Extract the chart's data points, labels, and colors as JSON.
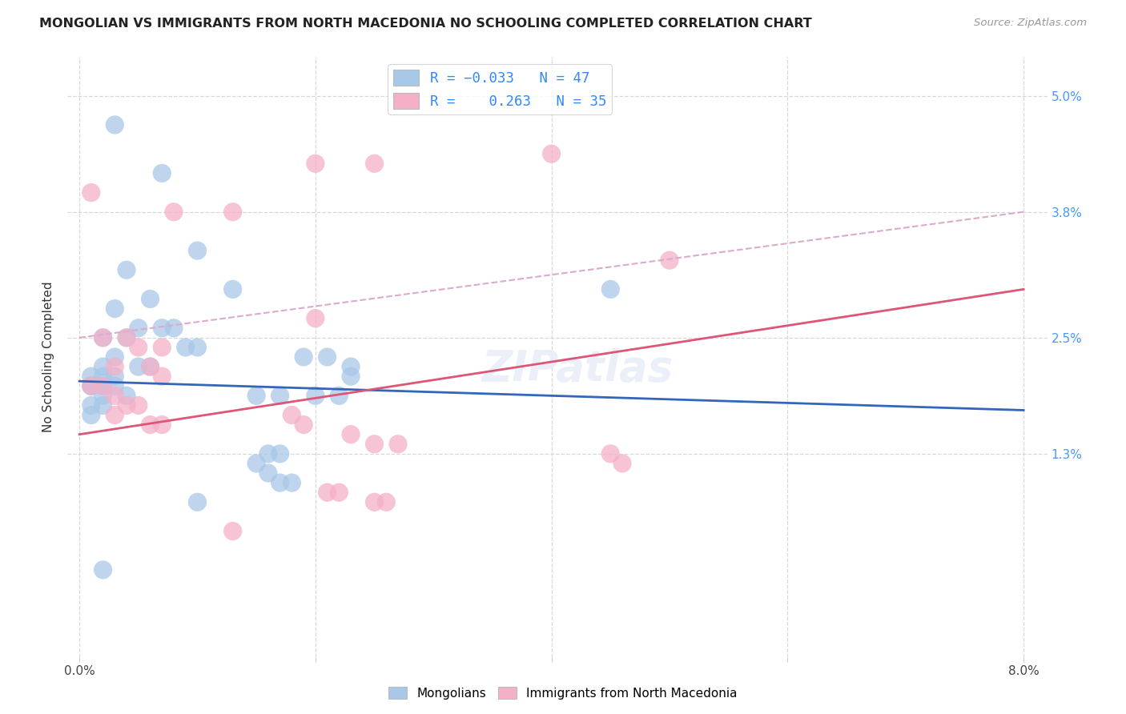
{
  "title": "MONGOLIAN VS IMMIGRANTS FROM NORTH MACEDONIA NO SCHOOLING COMPLETED CORRELATION CHART",
  "source": "Source: ZipAtlas.com",
  "ylabel": "No Schooling Completed",
  "ytick_vals": [
    0.013,
    0.025,
    0.038,
    0.05
  ],
  "ytick_labels": [
    "1.3%",
    "2.5%",
    "3.8%",
    "5.0%"
  ],
  "xtick_vals": [
    0.0,
    0.02,
    0.04,
    0.06,
    0.08
  ],
  "xtick_labels": [
    "0.0%",
    "",
    "",
    "",
    "8.0%"
  ],
  "xlim": [
    -0.001,
    0.082
  ],
  "ylim": [
    -0.008,
    0.054
  ],
  "mongolian_color": "#a8c8e8",
  "macedonia_color": "#f4b0c8",
  "mongolian_line_color": "#3366bb",
  "macedonia_line_color": "#dd5577",
  "mongolian_line": [
    [
      0.0,
      0.0205
    ],
    [
      0.08,
      0.0175
    ]
  ],
  "macedonia_line": [
    [
      0.0,
      0.015
    ],
    [
      0.08,
      0.03
    ]
  ],
  "dashed_line": [
    [
      0.0,
      0.025
    ],
    [
      0.08,
      0.038
    ]
  ],
  "dashed_line_color": "#ddaacc",
  "mongolian_scatter": [
    [
      0.003,
      0.047
    ],
    [
      0.007,
      0.042
    ],
    [
      0.01,
      0.034
    ],
    [
      0.004,
      0.032
    ],
    [
      0.006,
      0.029
    ],
    [
      0.013,
      0.03
    ],
    [
      0.003,
      0.028
    ],
    [
      0.005,
      0.026
    ],
    [
      0.007,
      0.026
    ],
    [
      0.008,
      0.026
    ],
    [
      0.002,
      0.025
    ],
    [
      0.004,
      0.025
    ],
    [
      0.009,
      0.024
    ],
    [
      0.01,
      0.024
    ],
    [
      0.003,
      0.023
    ],
    [
      0.005,
      0.022
    ],
    [
      0.006,
      0.022
    ],
    [
      0.002,
      0.022
    ],
    [
      0.003,
      0.021
    ],
    [
      0.002,
      0.021
    ],
    [
      0.001,
      0.021
    ],
    [
      0.001,
      0.02
    ],
    [
      0.002,
      0.02
    ],
    [
      0.003,
      0.02
    ],
    [
      0.001,
      0.02
    ],
    [
      0.004,
      0.019
    ],
    [
      0.002,
      0.019
    ],
    [
      0.001,
      0.018
    ],
    [
      0.001,
      0.017
    ],
    [
      0.002,
      0.018
    ],
    [
      0.015,
      0.019
    ],
    [
      0.017,
      0.019
    ],
    [
      0.02,
      0.019
    ],
    [
      0.022,
      0.019
    ],
    [
      0.019,
      0.023
    ],
    [
      0.021,
      0.023
    ],
    [
      0.023,
      0.022
    ],
    [
      0.023,
      0.021
    ],
    [
      0.017,
      0.013
    ],
    [
      0.016,
      0.013
    ],
    [
      0.015,
      0.012
    ],
    [
      0.016,
      0.011
    ],
    [
      0.017,
      0.01
    ],
    [
      0.018,
      0.01
    ],
    [
      0.01,
      0.008
    ],
    [
      0.045,
      0.03
    ],
    [
      0.002,
      0.001
    ]
  ],
  "macedonia_scatter": [
    [
      0.001,
      0.04
    ],
    [
      0.008,
      0.038
    ],
    [
      0.013,
      0.038
    ],
    [
      0.02,
      0.043
    ],
    [
      0.025,
      0.043
    ],
    [
      0.04,
      0.044
    ],
    [
      0.05,
      0.033
    ],
    [
      0.002,
      0.025
    ],
    [
      0.004,
      0.025
    ],
    [
      0.005,
      0.024
    ],
    [
      0.007,
      0.024
    ],
    [
      0.003,
      0.022
    ],
    [
      0.006,
      0.022
    ],
    [
      0.007,
      0.021
    ],
    [
      0.02,
      0.027
    ],
    [
      0.001,
      0.02
    ],
    [
      0.002,
      0.02
    ],
    [
      0.003,
      0.019
    ],
    [
      0.004,
      0.018
    ],
    [
      0.005,
      0.018
    ],
    [
      0.003,
      0.017
    ],
    [
      0.006,
      0.016
    ],
    [
      0.007,
      0.016
    ],
    [
      0.018,
      0.017
    ],
    [
      0.019,
      0.016
    ],
    [
      0.023,
      0.015
    ],
    [
      0.025,
      0.014
    ],
    [
      0.027,
      0.014
    ],
    [
      0.045,
      0.013
    ],
    [
      0.046,
      0.012
    ],
    [
      0.021,
      0.009
    ],
    [
      0.022,
      0.009
    ],
    [
      0.025,
      0.008
    ],
    [
      0.026,
      0.008
    ],
    [
      0.013,
      0.005
    ]
  ],
  "background_color": "#ffffff",
  "grid_color": "#d8d8d8"
}
